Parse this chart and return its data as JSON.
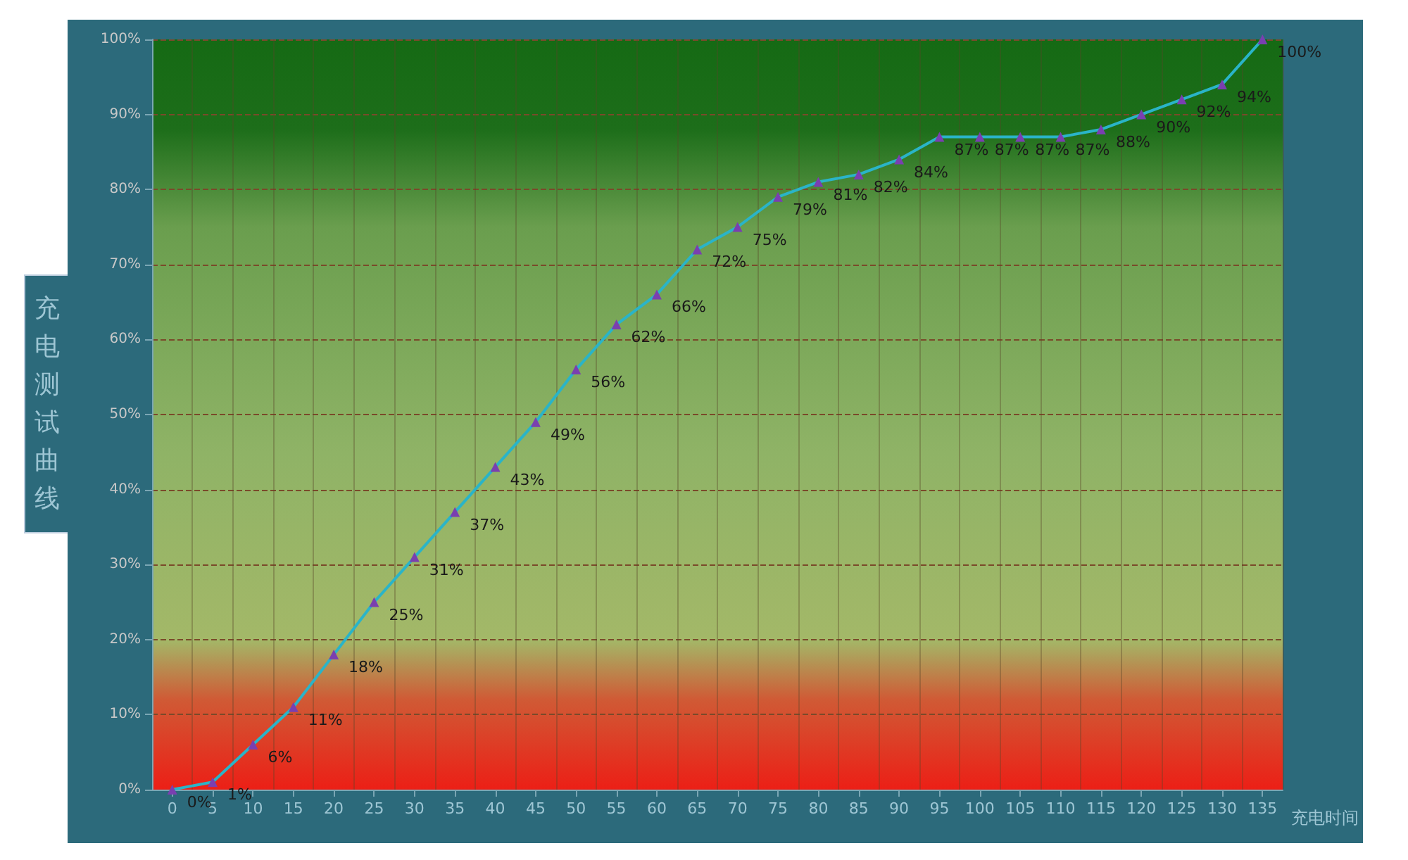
{
  "chart_data": {
    "type": "line",
    "title": "充电测试曲线",
    "xlabel": "充电时间",
    "categories": [
      "0",
      "5",
      "10",
      "15",
      "20",
      "25",
      "30",
      "35",
      "40",
      "45",
      "50",
      "55",
      "60",
      "65",
      "70",
      "75",
      "80",
      "85",
      "90",
      "95",
      "100",
      "105",
      "110",
      "115",
      "120",
      "125",
      "130",
      "135"
    ],
    "series": [
      {
        "color": "#2ab4c8",
        "values": [
          0,
          1,
          6,
          11,
          18,
          25,
          31,
          37,
          43,
          49,
          56,
          62,
          66,
          72,
          75,
          79,
          81,
          82,
          84,
          87,
          87,
          87,
          87,
          88,
          90,
          92,
          94,
          100
        ],
        "value_labels": [
          "0%",
          "1%",
          "6%",
          "11%",
          "18%",
          "25%",
          "31%",
          "37%",
          "43%",
          "49%",
          "56%",
          "62%",
          "66%",
          "72%",
          "75%",
          "79%",
          "81%",
          "82%",
          "84%",
          "87%",
          "87%",
          "87%",
          "87%",
          "88%",
          "90%",
          "92%",
          "94%",
          "100%"
        ]
      }
    ],
    "ylim": [
      0,
      100
    ],
    "yticks": [
      {
        "value": 0,
        "label": "0%"
      },
      {
        "value": 10,
        "label": "10%"
      },
      {
        "value": 20,
        "label": "20%"
      },
      {
        "value": 30,
        "label": "30%"
      },
      {
        "value": 40,
        "label": "40%"
      },
      {
        "value": 50,
        "label": "50%"
      },
      {
        "value": 60,
        "label": "60%"
      },
      {
        "value": 70,
        "label": "70%"
      },
      {
        "value": 80,
        "label": "80%"
      },
      {
        "value": 90,
        "label": "90%"
      },
      {
        "value": 100,
        "label": "100%"
      }
    ],
    "grid": true,
    "marker": "triangle",
    "line_style": "solid"
  }
}
